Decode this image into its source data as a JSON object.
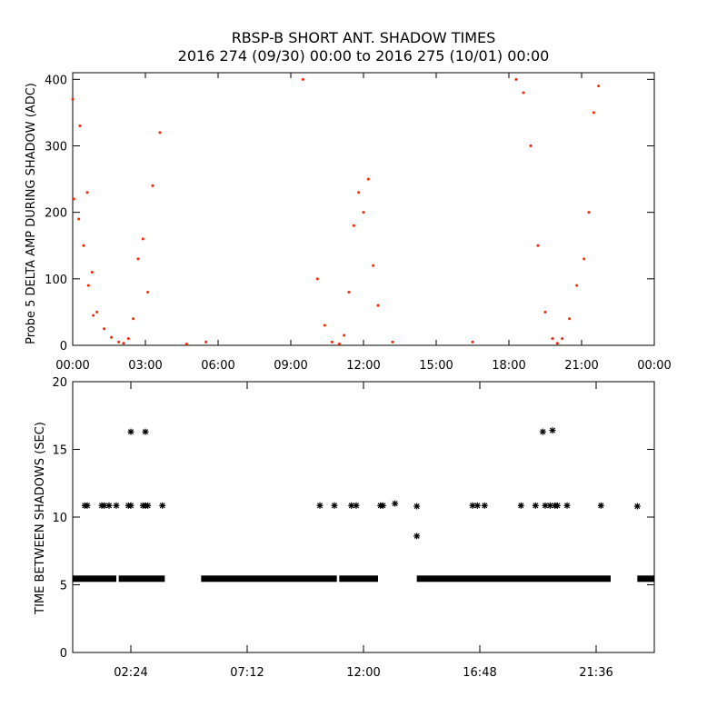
{
  "title_line1": "RBSP-B SHORT ANT. SHADOW TIMES",
  "title_line2": "2016 274 (09/30) 00:00 to 2016 275 (10/01) 00:00",
  "colors": {
    "points": "#ff2200",
    "axes": "#000000",
    "markers": "#000000"
  },
  "chart_data": [
    {
      "type": "scatter",
      "ylabel": "Probe 5 DELTA AMP DURING SHADOW (ADC)",
      "xlim": [
        0,
        24
      ],
      "ylim": [
        0,
        410
      ],
      "xticks": [
        "00:00",
        "03:00",
        "06:00",
        "09:00",
        "12:00",
        "15:00",
        "18:00",
        "21:00",
        "00:00"
      ],
      "yticks": [
        "0",
        "100",
        "200",
        "300",
        "400"
      ],
      "marker": "dot",
      "color": "#ff2200",
      "series": [
        {
          "x": [
            0.0,
            0.3,
            0.6,
            0.8,
            1.0,
            1.3,
            1.6,
            1.9,
            2.1,
            2.3,
            2.5,
            2.7,
            2.9,
            3.1,
            3.3,
            3.6
          ],
          "y": [
            370,
            330,
            230,
            110,
            50,
            25,
            12,
            5,
            3,
            10,
            40,
            130,
            160,
            80,
            240,
            320
          ]
        },
        {
          "x": [
            0.05,
            0.25,
            0.45,
            0.65,
            0.85
          ],
          "y": [
            220,
            190,
            150,
            90,
            45
          ]
        },
        {
          "x": [
            4.7,
            5.5,
            9.5,
            10.1,
            10.4,
            10.7,
            11.0,
            11.2,
            11.4,
            11.6,
            11.8,
            12.0,
            12.2,
            12.4,
            12.6,
            13.2
          ],
          "y": [
            2,
            5,
            400,
            100,
            30,
            5,
            2,
            15,
            80,
            180,
            230,
            200,
            250,
            120,
            60,
            5
          ]
        },
        {
          "x": [
            16.5,
            18.3,
            18.6,
            18.9,
            19.2,
            19.5,
            19.8,
            20.0,
            20.2,
            20.5,
            20.8,
            21.1,
            21.3,
            21.5,
            21.7
          ],
          "y": [
            5,
            400,
            380,
            300,
            150,
            50,
            10,
            3,
            10,
            40,
            90,
            130,
            200,
            350,
            390
          ]
        }
      ]
    },
    {
      "type": "scatter",
      "ylabel": "TIME BETWEEN SHADOWS (SEC)",
      "xlim": [
        0,
        24
      ],
      "ylim": [
        0,
        20
      ],
      "xticks": [
        "02:24",
        "07:12",
        "12:00",
        "16:48",
        "21:36"
      ],
      "yticks": [
        "0",
        "5",
        "10",
        "15",
        "20"
      ],
      "marker": "asterisk",
      "baseline_value": 5.45,
      "baseline_segments": [
        [
          0.0,
          1.8
        ],
        [
          1.9,
          3.8
        ],
        [
          5.3,
          10.9
        ],
        [
          11.0,
          12.6
        ],
        [
          14.2,
          22.2
        ],
        [
          23.3,
          24.0
        ]
      ],
      "series": [
        {
          "name": "",
          "x": [
            0.5,
            0.6,
            1.2,
            1.3,
            1.5,
            1.8,
            2.3,
            2.4,
            2.9,
            3.0,
            3.1,
            3.7,
            10.2,
            10.8,
            11.5,
            11.7,
            12.7,
            12.8,
            13.3,
            14.2,
            16.5,
            16.7,
            17.0,
            18.5,
            19.1,
            19.5,
            19.7,
            19.9,
            20.0,
            20.4,
            21.8,
            23.3
          ],
          "y": [
            10.85,
            10.85,
            10.85,
            10.85,
            10.85,
            10.85,
            10.85,
            10.85,
            10.85,
            10.85,
            10.85,
            10.85,
            10.85,
            10.85,
            10.85,
            10.85,
            10.85,
            10.85,
            11.0,
            10.8,
            10.85,
            10.85,
            10.85,
            10.85,
            10.85,
            10.85,
            10.85,
            10.85,
            10.85,
            10.85,
            10.85,
            10.8
          ]
        },
        {
          "name": "",
          "x": [
            2.4,
            3.0,
            19.4,
            19.8,
            14.2
          ],
          "y": [
            16.3,
            16.3,
            16.3,
            16.4,
            8.6
          ]
        }
      ]
    }
  ]
}
